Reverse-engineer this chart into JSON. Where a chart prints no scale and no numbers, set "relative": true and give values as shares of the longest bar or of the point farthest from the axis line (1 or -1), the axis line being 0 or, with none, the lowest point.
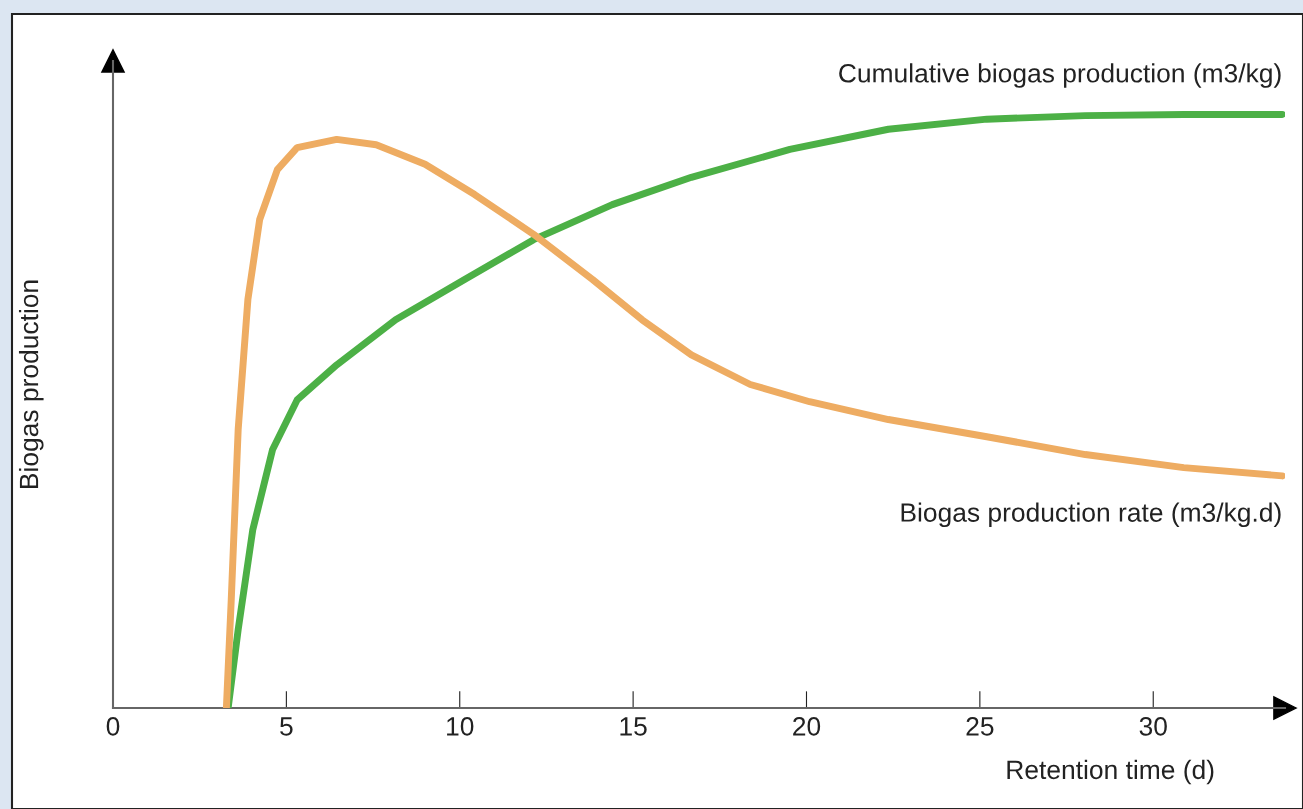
{
  "chart_data": {
    "type": "line",
    "relative": true,
    "xlabel": "Retention time (d)",
    "ylabel": "Biogas production",
    "xlim": [
      0,
      33.8
    ],
    "xticks": [
      0,
      5,
      10,
      15,
      20,
      25,
      30
    ],
    "grid": false,
    "legend": false,
    "marker": "none",
    "line_style": "solid",
    "series": [
      {
        "name": "Cumulative biogas production (m3/kg)",
        "color": "#4cb046",
        "x": [
          3.32,
          3.61,
          4.03,
          4.6,
          5.31,
          6.45,
          8.15,
          10.14,
          12.13,
          14.4,
          16.68,
          19.52,
          22.36,
          25.2,
          28.04,
          30.88,
          33.72
        ],
        "values": [
          0,
          0.132,
          0.3,
          0.435,
          0.519,
          0.578,
          0.654,
          0.722,
          0.789,
          0.848,
          0.894,
          0.941,
          0.975,
          0.992,
          0.998,
          1.0,
          1.0
        ]
      },
      {
        "name": "Biogas production rate (m3/kg.d)",
        "color": "#eeac62",
        "x": [
          3.27,
          3.41,
          3.61,
          3.89,
          4.23,
          4.74,
          5.31,
          6.45,
          7.59,
          9.0,
          10.43,
          12.13,
          13.83,
          15.26,
          16.68,
          18.38,
          20.09,
          22.36,
          25.2,
          28.04,
          30.88,
          33.72
        ],
        "values": [
          0,
          0.182,
          0.469,
          0.688,
          0.823,
          0.907,
          0.944,
          0.958,
          0.949,
          0.916,
          0.865,
          0.798,
          0.722,
          0.654,
          0.595,
          0.545,
          0.516,
          0.486,
          0.457,
          0.427,
          0.405,
          0.391
        ]
      }
    ]
  }
}
